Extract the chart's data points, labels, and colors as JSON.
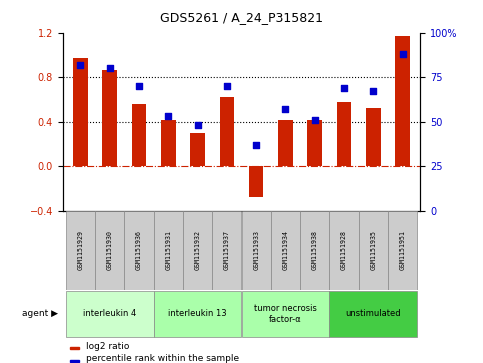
{
  "title": "GDS5261 / A_24_P315821",
  "samples": [
    "GSM1151929",
    "GSM1151930",
    "GSM1151936",
    "GSM1151931",
    "GSM1151932",
    "GSM1151937",
    "GSM1151933",
    "GSM1151934",
    "GSM1151938",
    "GSM1151928",
    "GSM1151935",
    "GSM1151951"
  ],
  "log2_ratio": [
    0.97,
    0.86,
    0.56,
    0.41,
    0.3,
    0.62,
    -0.28,
    0.41,
    0.41,
    0.58,
    0.52,
    1.17
  ],
  "percentile_rank": [
    82,
    80,
    70,
    53,
    48,
    70,
    37,
    57,
    51,
    69,
    67,
    88
  ],
  "ylim": [
    -0.4,
    1.2
  ],
  "right_ylim": [
    0,
    100
  ],
  "right_yticks": [
    0,
    25,
    50,
    75,
    100
  ],
  "right_yticklabels": [
    "0",
    "25",
    "50",
    "75",
    "100%"
  ],
  "left_yticks": [
    -0.4,
    0,
    0.4,
    0.8,
    1.2
  ],
  "dotted_lines": [
    0.4,
    0.8
  ],
  "bar_color": "#cc2200",
  "dot_color": "#0000cc",
  "zero_line_color": "#cc2200",
  "agents": [
    {
      "label": "interleukin 4",
      "start": 0,
      "end": 2,
      "color": "#ccffcc"
    },
    {
      "label": "interleukin 13",
      "start": 3,
      "end": 5,
      "color": "#aaffaa"
    },
    {
      "label": "tumor necrosis\nfactor-α",
      "start": 6,
      "end": 8,
      "color": "#aaffaa"
    },
    {
      "label": "unstimulated",
      "start": 9,
      "end": 11,
      "color": "#44cc44"
    }
  ],
  "agent_label": "agent ▶",
  "background_color": "#ffffff",
  "sample_box_color": "#cccccc",
  "bar_width": 0.5
}
